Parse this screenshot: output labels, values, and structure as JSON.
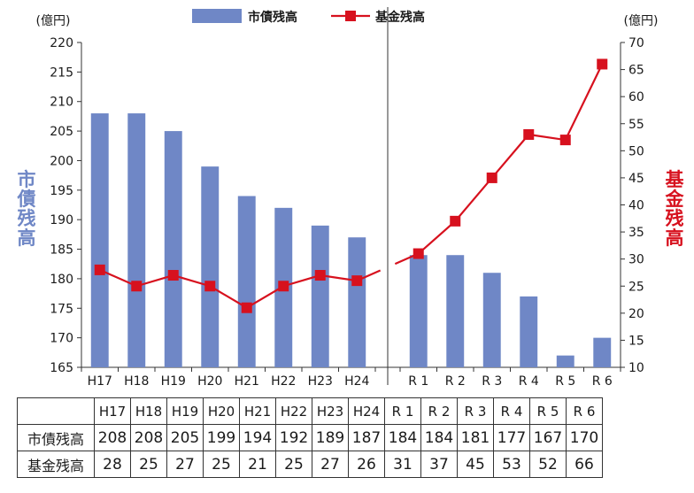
{
  "chart_data": {
    "type": "bar+line",
    "categories": [
      "H17",
      "H18",
      "H19",
      "H20",
      "H21",
      "H22",
      "H23",
      "H24",
      "R 1",
      "R 2",
      "R 3",
      "R 4",
      "R 5",
      "R 6"
    ],
    "series": [
      {
        "name": "市債残高",
        "type": "bar",
        "axis": "left",
        "color": "#6f87c6",
        "values": [
          208,
          208,
          205,
          199,
          194,
          192,
          189,
          187,
          184,
          184,
          181,
          177,
          167,
          170
        ]
      },
      {
        "name": "基金残高",
        "type": "line",
        "axis": "right",
        "color": "#d7111e",
        "values": [
          28,
          25,
          27,
          25,
          21,
          25,
          27,
          26,
          31,
          37,
          45,
          53,
          52,
          66
        ]
      }
    ],
    "left_axis": {
      "unit": "(億円)",
      "label": "市債残高",
      "min": 165,
      "max": 220,
      "step": 5,
      "color": "#6f87c6"
    },
    "right_axis": {
      "unit": "(億円)",
      "label": "基金残高",
      "min": 10,
      "max": 70,
      "step": 5,
      "color": "#d7111e"
    },
    "legend": [
      {
        "name": "市債残高",
        "kind": "bar"
      },
      {
        "name": "基金残高",
        "kind": "line"
      }
    ],
    "legend_position": "top-center",
    "break_between": [
      "H24",
      "R 1"
    ]
  },
  "table": {
    "rows": [
      {
        "label": "市債残高",
        "values": [
          208,
          208,
          205,
          199,
          194,
          192,
          189,
          187,
          184,
          184,
          181,
          177,
          167,
          170
        ]
      },
      {
        "label": "基金残高",
        "values": [
          28,
          25,
          27,
          25,
          21,
          25,
          27,
          26,
          31,
          37,
          45,
          53,
          52,
          66
        ]
      }
    ]
  }
}
